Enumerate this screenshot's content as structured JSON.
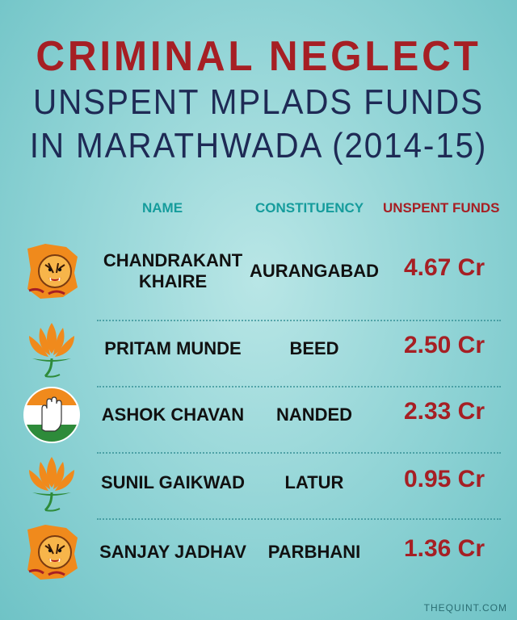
{
  "title": {
    "line1": "CRIMINAL NEGLECT",
    "line2": "UNSPENT MPLADS FUNDS",
    "line3_main": "IN MARATHWADA",
    "line3_years": "(2014-15)"
  },
  "headers": {
    "name": "NAME",
    "constituency": "CONSTITUENCY",
    "funds": "UNSPENT FUNDS"
  },
  "chart_data": {
    "type": "table",
    "title": "CRIMINAL NEGLECT UNSPENT MPLADS FUNDS IN MARATHWADA (2014-15)",
    "columns": [
      "NAME",
      "CONSTITUENCY",
      "UNSPENT FUNDS"
    ],
    "rows": [
      {
        "party_icon": "shiv-sena-tiger-icon",
        "name": "CHANDRAKANT KHAIRE",
        "constituency": "AURANGABAD",
        "funds": "4.67 Cr",
        "value_cr": 4.67
      },
      {
        "party_icon": "bjp-lotus-icon",
        "name": "PRITAM MUNDE",
        "constituency": "BEED",
        "funds": "2.50 Cr",
        "value_cr": 2.5
      },
      {
        "party_icon": "congress-hand-icon",
        "name": "ASHOK CHAVAN",
        "constituency": "NANDED",
        "funds": "2.33 Cr",
        "value_cr": 2.33
      },
      {
        "party_icon": "bjp-lotus-icon",
        "name": "SUNIL GAIKWAD",
        "constituency": "LATUR",
        "funds": "0.95 Cr",
        "value_cr": 0.95
      },
      {
        "party_icon": "shiv-sena-tiger-icon",
        "name": "SANJAY JADHAV",
        "constituency": "PARBHANI",
        "funds": "1.36 Cr",
        "value_cr": 1.36
      }
    ]
  },
  "colors": {
    "accent_red": "#a61f24",
    "navy": "#1e2a55",
    "teal": "#159c9c",
    "saffron": "#f08a1c",
    "green": "#2e8b3a"
  },
  "footer": "THEQUINT.COM"
}
